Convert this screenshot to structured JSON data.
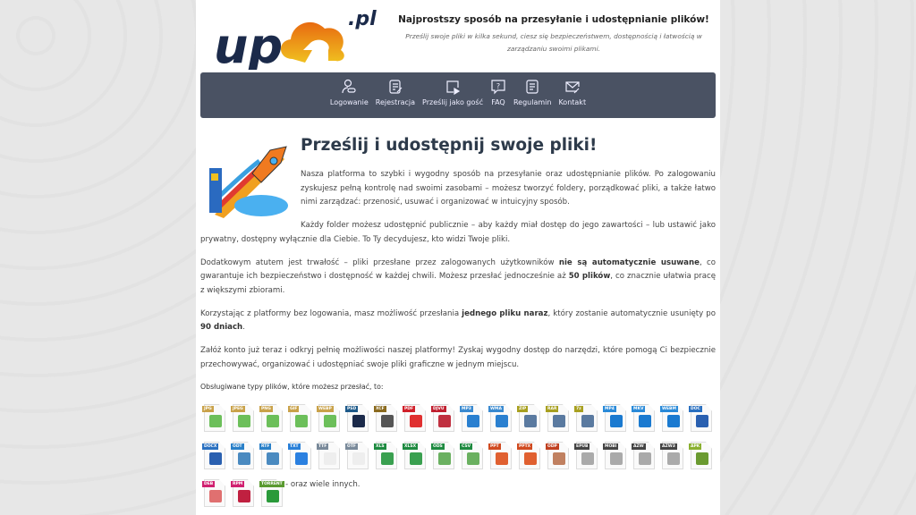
{
  "header": {
    "logo_text": "up",
    "logo_suffix": ".pl",
    "title": "Najprostszy sposób na przesyłanie i udostępnianie plików!",
    "subtitle": "Prześlij swoje pliki w kilka sekund, ciesz się bezpieczeństwem, dostępnością i łatwością w zarządzaniu swoimi plikami."
  },
  "nav": [
    {
      "label": "Logowanie",
      "icon": "user-key-icon"
    },
    {
      "label": "Rejestracja",
      "icon": "form-edit-icon"
    },
    {
      "label": "Prześlij jako gość",
      "icon": "upload-guest-icon"
    },
    {
      "label": "FAQ",
      "icon": "question-icon"
    },
    {
      "label": "Regulamin",
      "icon": "document-list-icon"
    },
    {
      "label": "Kontakt",
      "icon": "mail-edit-icon"
    }
  ],
  "main": {
    "title": "Prześlij i udostępnij swoje pliki!",
    "p1": "Nasza platforma to szybki i wygodny sposób na przesyłanie oraz udostępnianie plików. Po zalogowaniu zyskujesz pełną kontrolę nad swoimi zasobami – możesz tworzyć foldery, porządkować pliki, a także łatwo nimi zarządzać: przenosić, usuwać i organizować w intuicyjny sposób.",
    "p2": "Każdy folder możesz udostępnić publicznie – aby każdy miał dostęp do jego zawartości – lub ustawić jako prywatny, dostępny wyłącznie dla Ciebie. To Ty decydujesz, kto widzi Twoje pliki.",
    "p3": [
      "Dodatkowym atutem jest trwałość – pliki przesłane przez zalogowanych użytkowników ",
      "nie są automatycznie usuwane",
      ", co gwarantuje ich bezpieczeństwo i dostępność w każdej chwili. Możesz przesłać jednocześnie aż ",
      "50 plików",
      ", co znacznie ułatwia pracę z większymi zbiorami."
    ],
    "p4": [
      "Korzystając z platformy bez logowania, masz możliwość przesłania ",
      "jednego pliku naraz",
      ", który zostanie automatycznie usunięty po ",
      "90 dniach",
      "."
    ],
    "p5": "Załóż konto już teraz i odkryj pełnię możliwości naszej platformy! Zyskaj wygodny dostęp do narzędzi, które pomogą Ci bezpiecznie przechowywać, organizować i udostępniać swoje pliki graficzne w jednym miejscu.",
    "types_label": "Obsługiwane typy plików, które możesz przesłać, to:",
    "more": "- oraz wiele innych."
  },
  "file_types": [
    {
      "ext": "JPG",
      "color": "#c9a24a",
      "glyph": "#6cbf5a"
    },
    {
      "ext": "JPEG",
      "color": "#c9a24a",
      "glyph": "#6cbf5a"
    },
    {
      "ext": "PNG",
      "color": "#c9a24a",
      "glyph": "#6cbf5a"
    },
    {
      "ext": "GIF",
      "color": "#c9a24a",
      "glyph": "#6cbf5a"
    },
    {
      "ext": "WEBP",
      "color": "#c9a24a",
      "glyph": "#6cbf5a"
    },
    {
      "ext": "PSD",
      "color": "#1e5a8a",
      "glyph": "#1b2a4a"
    },
    {
      "ext": "XCF",
      "color": "#8a6a1e",
      "glyph": "#555"
    },
    {
      "ext": "PDF",
      "color": "#d0202a",
      "glyph": "#e03030"
    },
    {
      "ext": "DJVU",
      "color": "#c02030",
      "glyph": "#c03040"
    },
    {
      "ext": "MP3",
      "color": "#3a8ad0",
      "glyph": "#2a80d0"
    },
    {
      "ext": "WMA",
      "color": "#3a8ad0",
      "glyph": "#2a80d0"
    },
    {
      "ext": "ZIP",
      "color": "#a8a020",
      "glyph": "#5a7aa0"
    },
    {
      "ext": "RAR",
      "color": "#a8a020",
      "glyph": "#5a7aa0"
    },
    {
      "ext": "7z",
      "color": "#a8a020",
      "glyph": "#5a7aa0"
    },
    {
      "ext": "MP4",
      "color": "#2a8ad8",
      "glyph": "#1a7ad0"
    },
    {
      "ext": "MKV",
      "color": "#2a8ad8",
      "glyph": "#1a7ad0"
    },
    {
      "ext": "WEBM",
      "color": "#2a8ad8",
      "glyph": "#1a7ad0"
    },
    {
      "ext": "DOC",
      "color": "#2a70c0",
      "glyph": "#2a60b0"
    },
    {
      "ext": "DOCX",
      "color": "#2a70c0",
      "glyph": "#2a60b0"
    },
    {
      "ext": "ODT",
      "color": "#2a80c8",
      "glyph": "#4a8ac0"
    },
    {
      "ext": "RTF",
      "color": "#2a80c8",
      "glyph": "#4a8ac0"
    },
    {
      "ext": "TXT",
      "color": "#2a80d8",
      "glyph": "#2a80e0"
    },
    {
      "ext": "TTF",
      "color": "#7a8a9a",
      "glyph": "#eee"
    },
    {
      "ext": "OTF",
      "color": "#7a8a9a",
      "glyph": "#eee"
    },
    {
      "ext": "XLS",
      "color": "#1e8a40",
      "glyph": "#3aa050"
    },
    {
      "ext": "XLSX",
      "color": "#1e8a40",
      "glyph": "#3aa050"
    },
    {
      "ext": "ODS",
      "color": "#1e8a40",
      "glyph": "#6ab060"
    },
    {
      "ext": "CSV",
      "color": "#1e8a40",
      "glyph": "#6ab060"
    },
    {
      "ext": "PPT",
      "color": "#d04a20",
      "glyph": "#e06030"
    },
    {
      "ext": "PPTX",
      "color": "#d04a20",
      "glyph": "#e06030"
    },
    {
      "ext": "ODP",
      "color": "#c04020",
      "glyph": "#c08060"
    },
    {
      "ext": "EPUB",
      "color": "#444",
      "glyph": "#aaa"
    },
    {
      "ext": "MOBI",
      "color": "#444",
      "glyph": "#aaa"
    },
    {
      "ext": "AZW",
      "color": "#444",
      "glyph": "#aaa"
    },
    {
      "ext": "AZW3",
      "color": "#444",
      "glyph": "#aaa"
    },
    {
      "ext": "APK",
      "color": "#8ab030",
      "glyph": "#6a9a30"
    },
    {
      "ext": "DEB",
      "color": "#d02070",
      "glyph": "#e07070"
    },
    {
      "ext": "RPM",
      "color": "#d02070",
      "glyph": "#c02040"
    },
    {
      "ext": "TORRENT",
      "color": "#5a9a30",
      "glyph": "#2a9a3a"
    }
  ]
}
